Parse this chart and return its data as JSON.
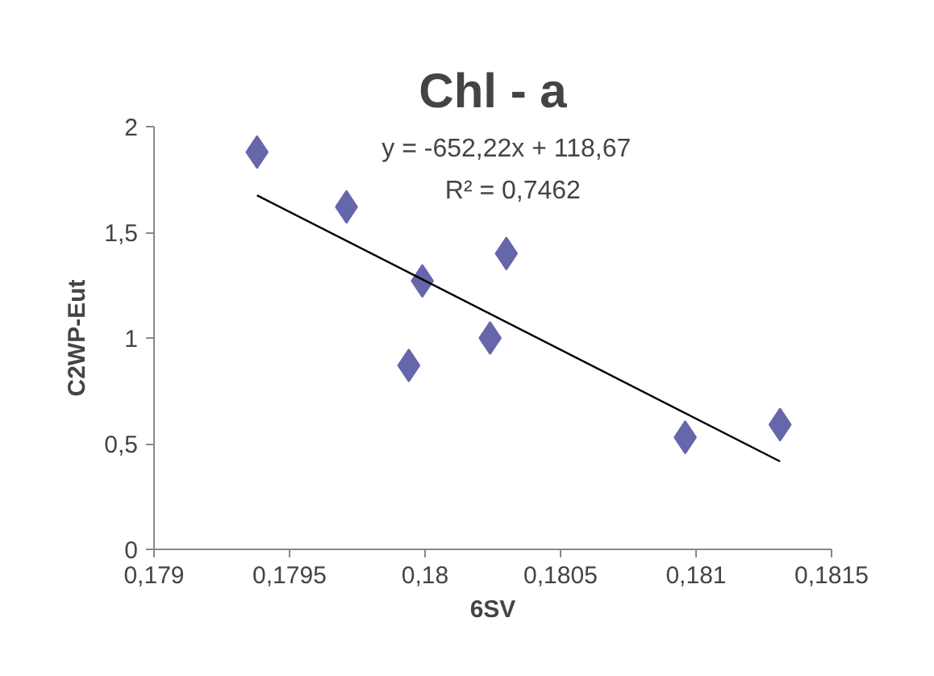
{
  "chart_data": {
    "type": "scatter",
    "title": "Chl - a",
    "xlabel": "6SV",
    "ylabel": "C2WP-Eut",
    "series": [
      {
        "color": "#6666aa",
        "marker": "diamond",
        "x": [
          0.17938,
          0.17971,
          0.17999,
          0.17994,
          0.18024,
          0.1803,
          0.18096,
          0.18131
        ],
        "values": [
          1.88,
          1.62,
          1.27,
          0.87,
          1.0,
          1.4,
          0.53,
          0.59
        ]
      },
      {
        "type": "line",
        "color": "#000000",
        "marker": "none",
        "x": [
          0.17938,
          0.18131
        ],
        "values": [
          1.675,
          0.416
        ]
      }
    ],
    "xlim": [
      0.179,
      0.1815
    ],
    "ylim": [
      0,
      2
    ],
    "xticks": [
      {
        "value": 0.179,
        "label": "0,179"
      },
      {
        "value": 0.1795,
        "label": "0,1795"
      },
      {
        "value": 0.18,
        "label": "0,18"
      },
      {
        "value": 0.1805,
        "label": "0,1805"
      },
      {
        "value": 0.181,
        "label": "0,181"
      },
      {
        "value": 0.1815,
        "label": "0,1815"
      }
    ],
    "yticks": [
      0,
      {
        "value": 0.5,
        "label": "0,5"
      },
      1,
      {
        "value": 1.5,
        "label": "1,5"
      },
      2
    ],
    "annotations": [
      "y = -652,22x + 118,67",
      "R² = 0,7462"
    ],
    "grid": false
  }
}
